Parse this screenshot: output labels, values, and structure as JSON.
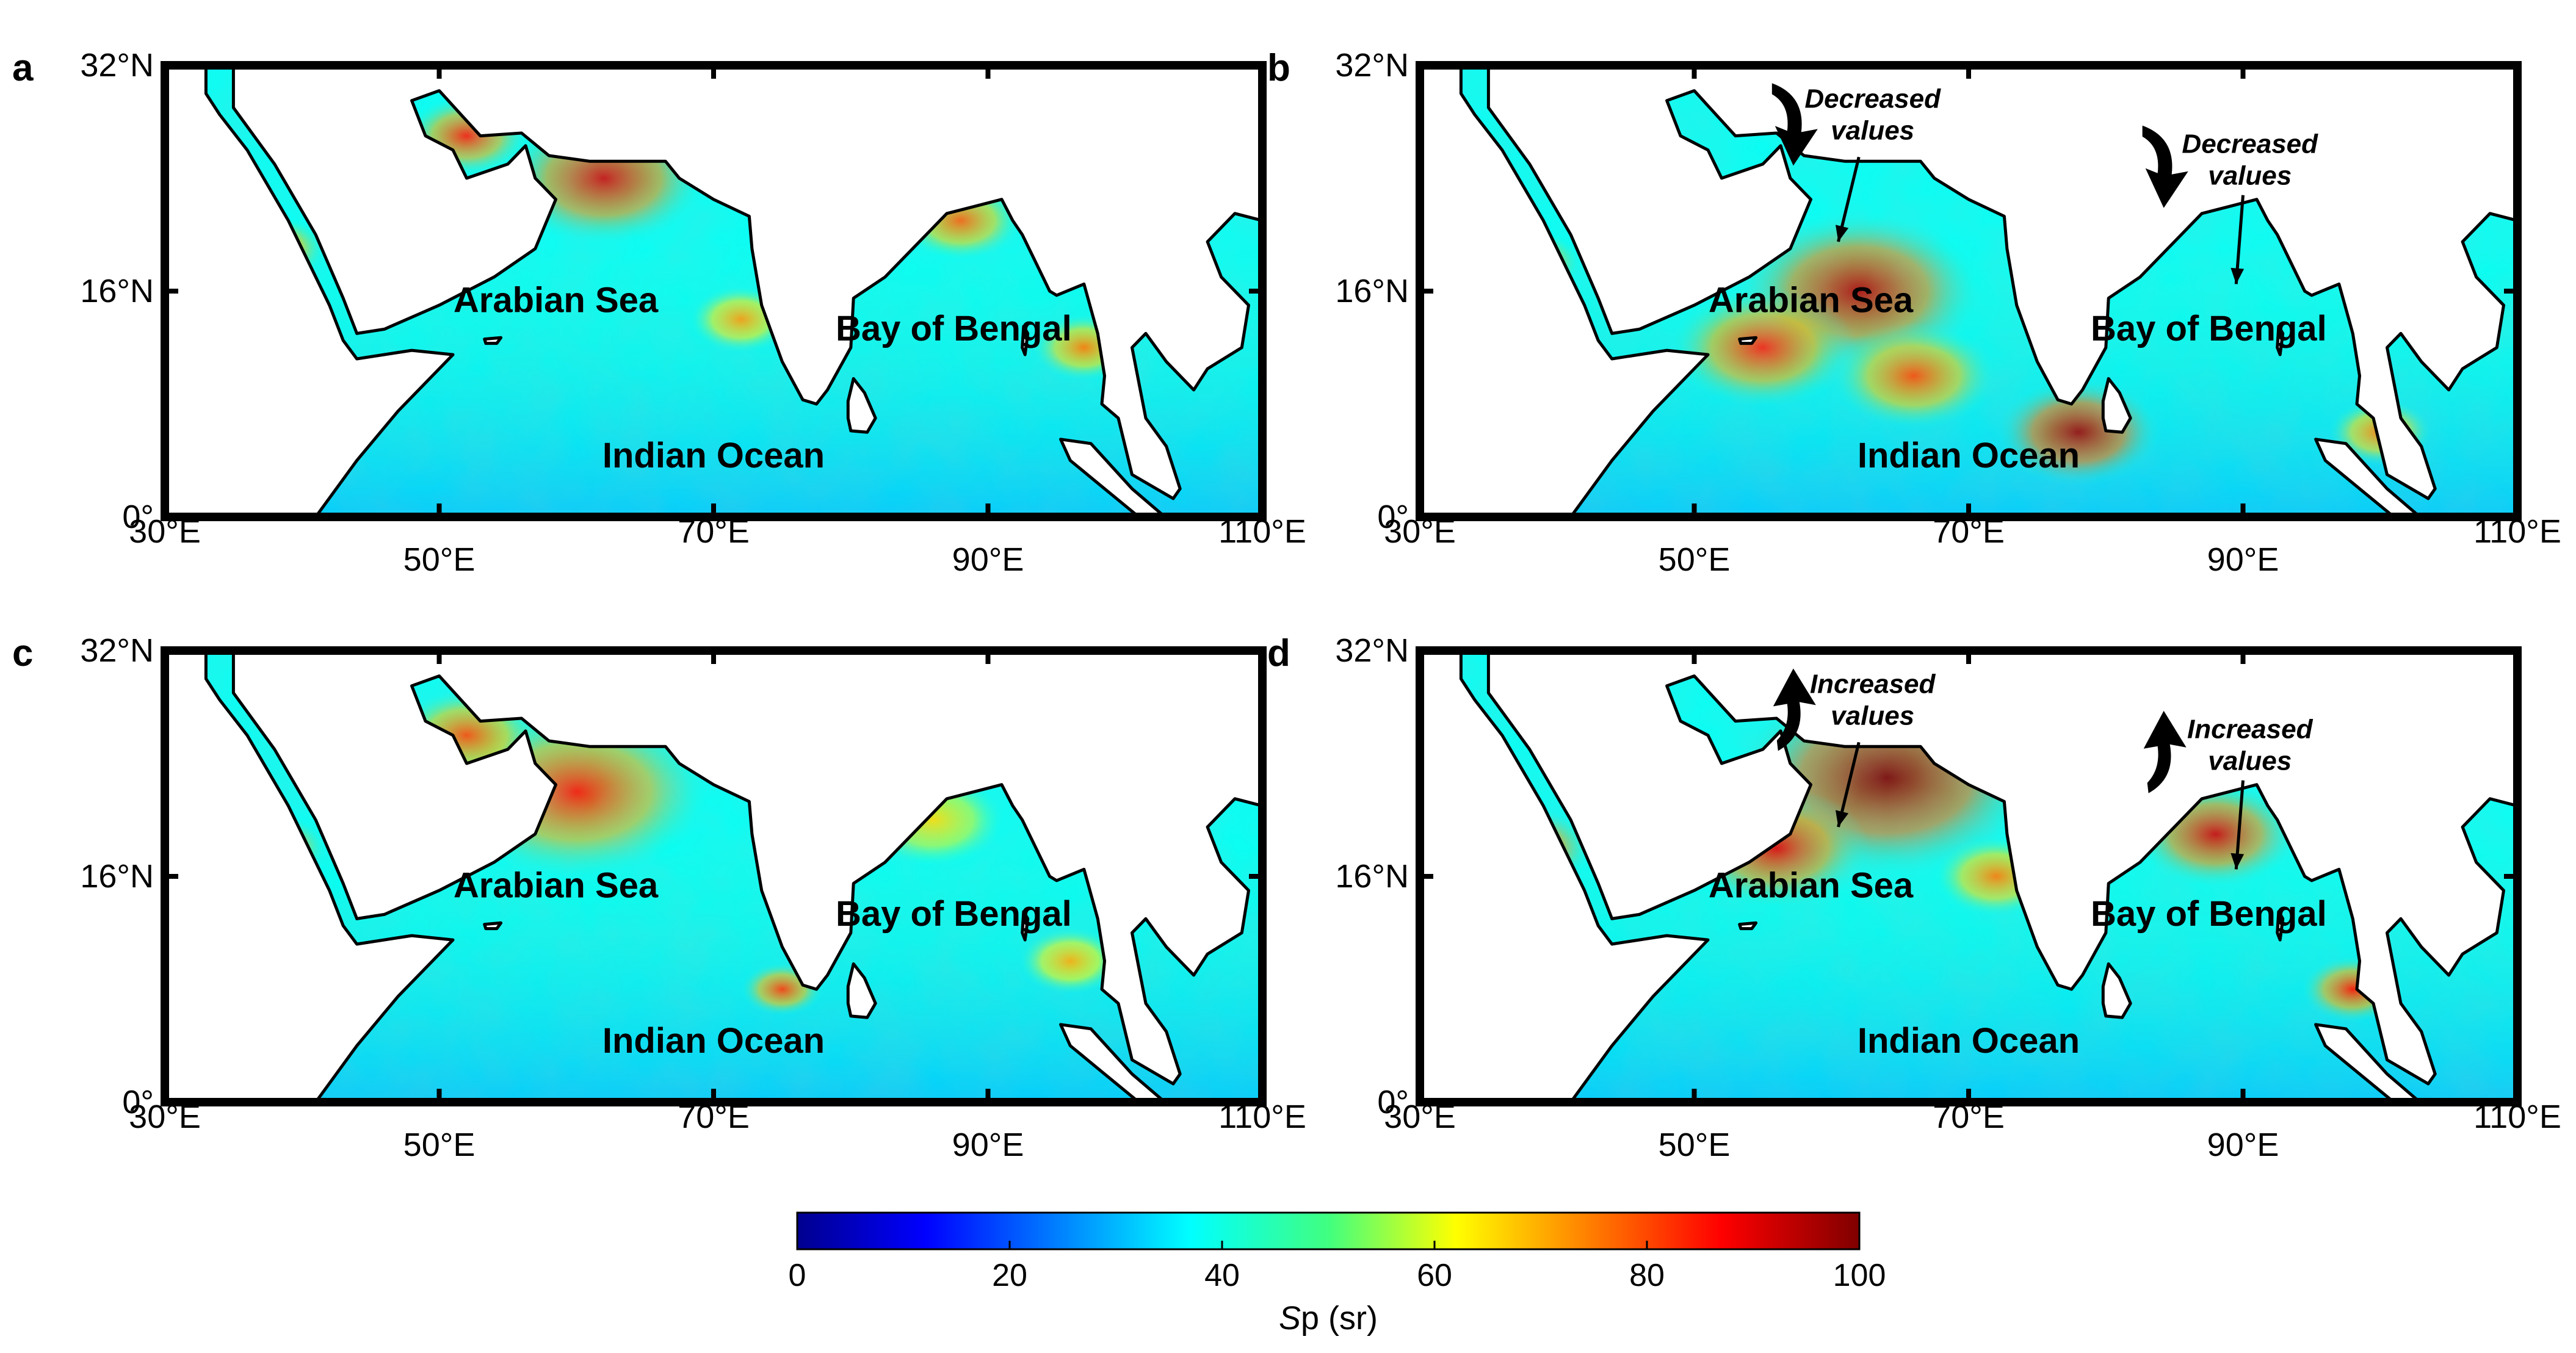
{
  "panels": [
    {
      "letter": "a",
      "sea_labels": {
        "arabian": "Arabian Sea",
        "bengal": "Bay of Bengal",
        "indian": "Indian Ocean"
      },
      "annotations": [],
      "hotspots": [
        {
          "lon": 62,
          "lat": 24,
          "level": 0.92,
          "spread": 1.0
        },
        {
          "lon": 52,
          "lat": 27,
          "level": 0.85,
          "spread": 0.6
        },
        {
          "lon": 38,
          "lat": 19,
          "level": 0.8,
          "spread": 0.5
        },
        {
          "lon": 72,
          "lat": 14,
          "level": 0.72,
          "spread": 0.5
        },
        {
          "lon": 88,
          "lat": 21,
          "level": 0.78,
          "spread": 0.6
        },
        {
          "lon": 97,
          "lat": 12,
          "level": 0.75,
          "spread": 0.5
        }
      ]
    },
    {
      "letter": "b",
      "sea_labels": {
        "arabian": "Arabian Sea",
        "bengal": "Bay of Bengal",
        "indian": "Indian Ocean"
      },
      "annotations": [
        {
          "line1": "Decreased",
          "line2": "values",
          "direction": "down"
        },
        {
          "line1": "Decreased",
          "line2": "values",
          "direction": "down"
        }
      ],
      "hotspots": [
        {
          "lon": 62,
          "lat": 16,
          "level": 0.95,
          "spread": 1.2
        },
        {
          "lon": 55,
          "lat": 12,
          "level": 0.85,
          "spread": 0.9
        },
        {
          "lon": 78,
          "lat": 6,
          "level": 0.98,
          "spread": 0.8
        },
        {
          "lon": 66,
          "lat": 10,
          "level": 0.8,
          "spread": 0.8
        },
        {
          "lon": 38,
          "lat": 18,
          "level": 0.82,
          "spread": 0.5
        },
        {
          "lon": 100,
          "lat": 6,
          "level": 0.75,
          "spread": 0.5
        }
      ]
    },
    {
      "letter": "c",
      "sea_labels": {
        "arabian": "Arabian Sea",
        "bengal": "Bay of Bengal",
        "indian": "Indian Ocean"
      },
      "annotations": [],
      "hotspots": [
        {
          "lon": 60,
          "lat": 22,
          "level": 0.85,
          "spread": 1.3
        },
        {
          "lon": 52,
          "lat": 26,
          "level": 0.8,
          "spread": 0.7
        },
        {
          "lon": 38,
          "lat": 18,
          "level": 0.82,
          "spread": 0.5
        },
        {
          "lon": 75,
          "lat": 8,
          "level": 0.82,
          "spread": 0.4
        },
        {
          "lon": 96,
          "lat": 10,
          "level": 0.7,
          "spread": 0.5
        },
        {
          "lon": 86,
          "lat": 20,
          "level": 0.65,
          "spread": 0.7
        }
      ]
    },
    {
      "letter": "d",
      "sea_labels": {
        "arabian": "Arabian Sea",
        "bengal": "Bay of Bengal",
        "indian": "Indian Ocean"
      },
      "annotations": [
        {
          "line1": "Increased",
          "line2": "values",
          "direction": "up"
        },
        {
          "line1": "Increased",
          "line2": "values",
          "direction": "up"
        }
      ],
      "hotspots": [
        {
          "lon": 64,
          "lat": 23,
          "level": 1.0,
          "spread": 1.5
        },
        {
          "lon": 56,
          "lat": 18,
          "level": 0.9,
          "spread": 0.9
        },
        {
          "lon": 88,
          "lat": 19,
          "level": 0.92,
          "spread": 0.8
        },
        {
          "lon": 38,
          "lat": 18,
          "level": 0.88,
          "spread": 0.6
        },
        {
          "lon": 98,
          "lat": 8,
          "level": 0.85,
          "spread": 0.5
        },
        {
          "lon": 72,
          "lat": 16,
          "level": 0.75,
          "spread": 0.6
        }
      ]
    }
  ],
  "axes": {
    "lon_ticks": [
      {
        "value": 30,
        "label": "30°E"
      },
      {
        "value": 50,
        "label": "50°E"
      },
      {
        "value": 70,
        "label": "70°E"
      },
      {
        "value": 90,
        "label": "90°E"
      },
      {
        "value": 110,
        "label": "110°E"
      }
    ],
    "lat_ticks": [
      {
        "value": 32,
        "label": "32°N"
      },
      {
        "value": 16,
        "label": "16°N"
      },
      {
        "value": 0,
        "label": "0°"
      }
    ],
    "lon_range": [
      30,
      110
    ],
    "lat_range": [
      0,
      32
    ]
  },
  "colorbar": {
    "label_italic": "S",
    "label_rest": "p (sr)",
    "range": [
      0,
      100
    ],
    "ticks": [
      "0",
      "20",
      "40",
      "60",
      "80",
      "100"
    ],
    "colormap": "jet"
  },
  "colors": {
    "frame": "#000000",
    "land": "#ffffff",
    "base_ocean_level": 0.38
  }
}
